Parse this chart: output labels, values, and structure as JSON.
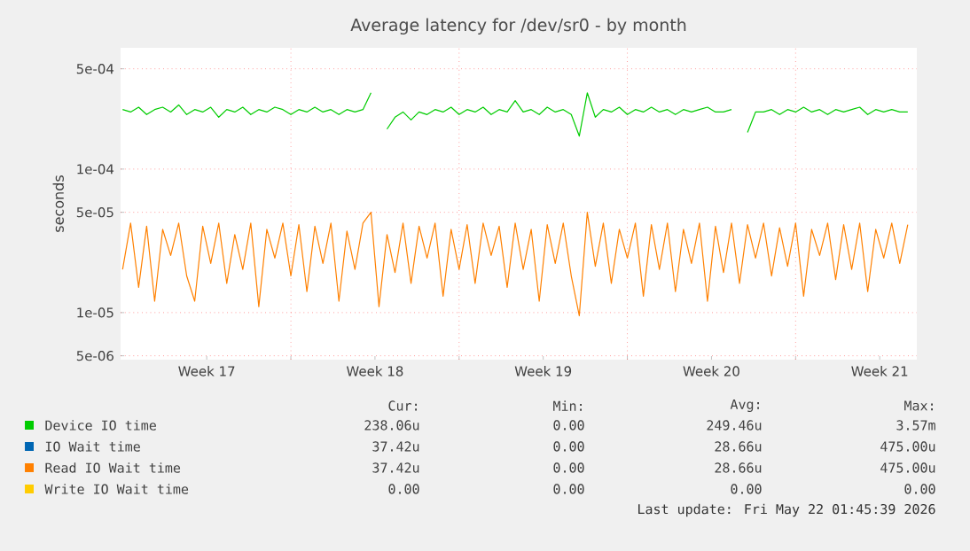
{
  "chart_data": {
    "type": "line",
    "title": "Average latency for /dev/sr0 - by month",
    "ylabel": "seconds",
    "log": true,
    "grid": true,
    "legend": "bottom",
    "xlim": [
      "2026-04-19T22:00",
      "2026-05-23T01:00"
    ],
    "ylim": [
      4.7e-06,
      0.0007
    ],
    "yticks": [
      {
        "value": 5e-06,
        "label": "5e-06"
      },
      {
        "value": 1e-05,
        "label": "1e-05"
      },
      {
        "value": 5e-05,
        "label": "5e-05"
      },
      {
        "value": 0.0001,
        "label": "1e-04"
      },
      {
        "value": 0.0005,
        "label": "5e-04"
      }
    ],
    "xticks": [
      {
        "value": "2026-04-23T12:00",
        "label": "Week 17"
      },
      {
        "value": "2026-04-27",
        "label": null
      },
      {
        "value": "2026-04-30T12:00",
        "label": "Week 18"
      },
      {
        "value": "2026-05-04",
        "label": null
      },
      {
        "value": "2026-05-07T12:00",
        "label": "Week 19"
      },
      {
        "value": "2026-05-11",
        "label": null
      },
      {
        "value": "2026-05-14T12:00",
        "label": "Week 20"
      },
      {
        "value": "2026-05-18",
        "label": null
      },
      {
        "value": "2026-05-21T12:00",
        "label": "Week 21"
      }
    ],
    "x": [
      "2026-04-20T00:00",
      "2026-04-20T08:00",
      "2026-04-20T16:00",
      "2026-04-21T00:00",
      "2026-04-21T08:00",
      "2026-04-21T16:00",
      "2026-04-22T00:00",
      "2026-04-22T08:00",
      "2026-04-22T16:00",
      "2026-04-23T00:00",
      "2026-04-23T08:00",
      "2026-04-23T16:00",
      "2026-04-24T00:00",
      "2026-04-24T08:00",
      "2026-04-24T16:00",
      "2026-04-25T00:00",
      "2026-04-25T08:00",
      "2026-04-25T16:00",
      "2026-04-26T00:00",
      "2026-04-26T08:00",
      "2026-04-26T16:00",
      "2026-04-27T00:00",
      "2026-04-27T08:00",
      "2026-04-27T16:00",
      "2026-04-28T00:00",
      "2026-04-28T08:00",
      "2026-04-28T16:00",
      "2026-04-29T00:00",
      "2026-04-29T08:00",
      "2026-04-29T16:00",
      "2026-04-30T00:00",
      "2026-04-30T08:00",
      "2026-04-30T16:00",
      "2026-05-01T00:00",
      "2026-05-01T08:00",
      "2026-05-01T16:00",
      "2026-05-02T00:00",
      "2026-05-02T08:00",
      "2026-05-02T16:00",
      "2026-05-03T00:00",
      "2026-05-03T08:00",
      "2026-05-03T16:00",
      "2026-05-04T00:00",
      "2026-05-04T08:00",
      "2026-05-04T16:00",
      "2026-05-05T00:00",
      "2026-05-05T08:00",
      "2026-05-05T16:00",
      "2026-05-06T00:00",
      "2026-05-06T08:00",
      "2026-05-06T16:00",
      "2026-05-07T00:00",
      "2026-05-07T08:00",
      "2026-05-07T16:00",
      "2026-05-08T00:00",
      "2026-05-08T08:00",
      "2026-05-08T16:00",
      "2026-05-09T00:00",
      "2026-05-09T08:00",
      "2026-05-09T16:00",
      "2026-05-10T00:00",
      "2026-05-10T08:00",
      "2026-05-10T16:00",
      "2026-05-11T00:00",
      "2026-05-11T08:00",
      "2026-05-11T16:00",
      "2026-05-12T00:00",
      "2026-05-12T08:00",
      "2026-05-12T16:00",
      "2026-05-13T00:00",
      "2026-05-13T08:00",
      "2026-05-13T16:00",
      "2026-05-14T00:00",
      "2026-05-14T08:00",
      "2026-05-14T16:00",
      "2026-05-15T00:00",
      "2026-05-15T08:00",
      "2026-05-15T16:00",
      "2026-05-16T00:00",
      "2026-05-16T08:00",
      "2026-05-16T16:00",
      "2026-05-17T00:00",
      "2026-05-17T08:00",
      "2026-05-17T16:00",
      "2026-05-18T00:00",
      "2026-05-18T08:00",
      "2026-05-18T16:00",
      "2026-05-19T00:00",
      "2026-05-19T08:00",
      "2026-05-19T16:00",
      "2026-05-20T00:00",
      "2026-05-20T08:00",
      "2026-05-20T16:00",
      "2026-05-21T00:00",
      "2026-05-21T08:00",
      "2026-05-21T16:00",
      "2026-05-22T00:00",
      "2026-05-22T08:00",
      "2026-05-22T16:00"
    ],
    "series": [
      {
        "name": "Device IO time",
        "color": "#00cc00",
        "values": [
          0.00026,
          0.00025,
          0.00027,
          0.00024,
          0.00026,
          0.00027,
          0.00025,
          0.00028,
          0.00024,
          0.00026,
          0.00025,
          0.00027,
          0.00023,
          0.00026,
          0.00025,
          0.00027,
          0.00024,
          0.00026,
          0.00025,
          0.00027,
          0.00026,
          0.00024,
          0.00026,
          0.00025,
          0.00027,
          0.00025,
          0.00026,
          0.00024,
          0.00026,
          0.00025,
          0.00026,
          0.00034,
          null,
          0.00019,
          0.00023,
          0.00025,
          0.00022,
          0.00025,
          0.00024,
          0.00026,
          0.00025,
          0.00027,
          0.00024,
          0.00026,
          0.00025,
          0.00027,
          0.00024,
          0.00026,
          0.00025,
          0.0003,
          0.00025,
          0.00026,
          0.00024,
          0.00027,
          0.00025,
          0.00026,
          0.00024,
          0.00017,
          0.00034,
          0.00023,
          0.00026,
          0.00025,
          0.00027,
          0.00024,
          0.00026,
          0.00025,
          0.00027,
          0.00025,
          0.00026,
          0.00024,
          0.00026,
          0.00025,
          0.00026,
          0.00027,
          0.00025,
          0.00025,
          0.00026,
          null,
          0.00018,
          0.00025,
          0.00025,
          0.00026,
          0.00024,
          0.00026,
          0.00025,
          0.00027,
          0.00025,
          0.00026,
          0.00024,
          0.00026,
          0.00025,
          0.00026,
          0.00027,
          0.00024,
          0.00026,
          0.00025,
          0.00026,
          0.00025,
          0.00025
        ]
      },
      {
        "name": "IO Wait time",
        "color": "#0066b3",
        "values": [
          null,
          null,
          null,
          null,
          null,
          null,
          null,
          null,
          null,
          null,
          null,
          null,
          null,
          null,
          null,
          null,
          null,
          null,
          null,
          null,
          null,
          null,
          null,
          null,
          null,
          null,
          null,
          null,
          null,
          null,
          null,
          null,
          null,
          null,
          null,
          null,
          null,
          null,
          null,
          null,
          null,
          null,
          null,
          null,
          null,
          null,
          null,
          null,
          null,
          null,
          null,
          null,
          null,
          null,
          null,
          null,
          null,
          null,
          null,
          null,
          null,
          null,
          null,
          null,
          null,
          null,
          null,
          null,
          null,
          null,
          null,
          null,
          null,
          null,
          null,
          null,
          null,
          null,
          null,
          null,
          null,
          null,
          null,
          null,
          null,
          null,
          null,
          null,
          null,
          null,
          null,
          null,
          null,
          null,
          null,
          null,
          null,
          null,
          null
        ]
      },
      {
        "name": "Read IO Wait time",
        "color": "#ff8000",
        "values": [
          2e-05,
          4.2e-05,
          1.5e-05,
          4e-05,
          1.2e-05,
          3.8e-05,
          2.5e-05,
          4.2e-05,
          1.8e-05,
          1.2e-05,
          4e-05,
          2.2e-05,
          4.2e-05,
          1.6e-05,
          3.5e-05,
          2e-05,
          4.2e-05,
          1.1e-05,
          3.8e-05,
          2.4e-05,
          4.2e-05,
          1.8e-05,
          4.1e-05,
          1.4e-05,
          4e-05,
          2.2e-05,
          4.2e-05,
          1.2e-05,
          3.7e-05,
          2e-05,
          4.2e-05,
          5e-05,
          1.1e-05,
          3.5e-05,
          1.9e-05,
          4.2e-05,
          1.6e-05,
          4e-05,
          2.4e-05,
          4.2e-05,
          1.3e-05,
          3.8e-05,
          2e-05,
          4.1e-05,
          1.6e-05,
          4.2e-05,
          2.5e-05,
          4e-05,
          1.5e-05,
          4.2e-05,
          2e-05,
          3.8e-05,
          1.2e-05,
          4.1e-05,
          2.2e-05,
          4.2e-05,
          1.8e-05,
          9.5e-06,
          5e-05,
          2.1e-05,
          4.2e-05,
          1.6e-05,
          3.8e-05,
          2.4e-05,
          4.2e-05,
          1.3e-05,
          4.1e-05,
          2e-05,
          4.2e-05,
          1.4e-05,
          3.8e-05,
          2.2e-05,
          4.2e-05,
          1.2e-05,
          4e-05,
          1.9e-05,
          4.2e-05,
          1.6e-05,
          4.1e-05,
          2.4e-05,
          4.2e-05,
          1.8e-05,
          3.9e-05,
          2.1e-05,
          4.2e-05,
          1.3e-05,
          3.8e-05,
          2.5e-05,
          4.2e-05,
          1.7e-05,
          4.1e-05,
          2e-05,
          4.2e-05,
          1.4e-05,
          3.8e-05,
          2.4e-05,
          4.2e-05,
          2.2e-05,
          4.1e-05
        ]
      },
      {
        "name": "Write IO Wait time",
        "color": "#ffcc00",
        "values": [
          null,
          null,
          null,
          null,
          null,
          null,
          null,
          null,
          null,
          null,
          null,
          null,
          null,
          null,
          null,
          null,
          null,
          null,
          null,
          null,
          null,
          null,
          null,
          null,
          null,
          null,
          null,
          null,
          null,
          null,
          null,
          null,
          null,
          null,
          null,
          null,
          null,
          null,
          null,
          null,
          null,
          null,
          null,
          null,
          null,
          null,
          null,
          null,
          null,
          null,
          null,
          null,
          null,
          null,
          null,
          null,
          null,
          null,
          null,
          null,
          null,
          null,
          null,
          null,
          null,
          null,
          null,
          null,
          null,
          null,
          null,
          null,
          null,
          null,
          null,
          null,
          null,
          null,
          null,
          null,
          null,
          null,
          null,
          null,
          null,
          null,
          null,
          null,
          null,
          null,
          null,
          null,
          null,
          null,
          null,
          null,
          null,
          null,
          null
        ]
      }
    ],
    "annotations": [
      "Cur:",
      "Min:",
      "Avg:",
      "Max:",
      "238.06u",
      "0.00",
      "249.46u",
      "3.57m",
      "37.42u",
      "0.00",
      "28.66u",
      "475.00u",
      "37.42u",
      "0.00",
      "28.66u",
      "475.00u",
      "0.00",
      "0.00",
      "0.00",
      "0.00",
      "Last update: Fri May 22 01:45:39 2026"
    ]
  }
}
